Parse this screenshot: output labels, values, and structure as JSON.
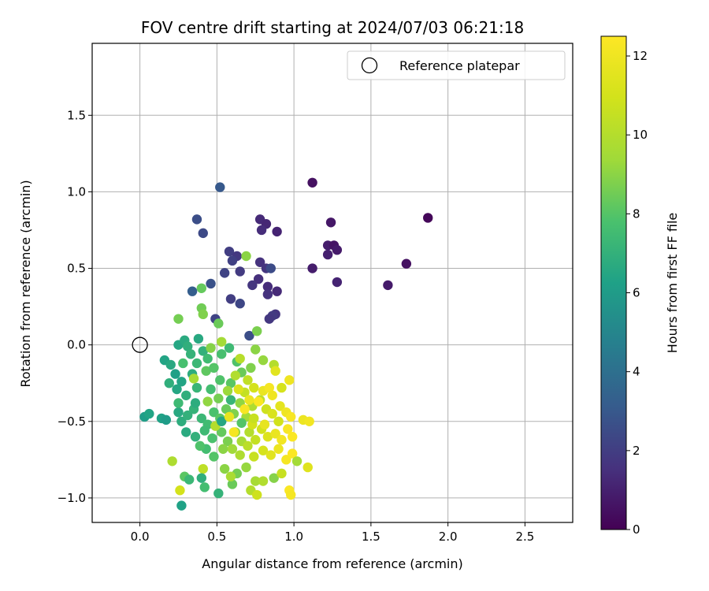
{
  "chart_data": {
    "type": "scatter",
    "title": "FOV centre drift starting at 2024/07/03 06:21:18",
    "xlabel": "Angular distance from reference (arcmin)",
    "ylabel": "Rotation from reference (arcmin)",
    "xlim": [
      -0.31,
      2.81
    ],
    "ylim": [
      -1.16,
      1.97
    ],
    "xticks": [
      "0.0",
      "0.5",
      "1.0",
      "1.5",
      "2.0",
      "2.5"
    ],
    "xtick_values": [
      0,
      0.5,
      1.0,
      1.5,
      2.0,
      2.5
    ],
    "yticks": [
      "−1.0",
      "−0.5",
      "0.0",
      "0.5",
      "1.0",
      "1.5"
    ],
    "ytick_values": [
      -1.0,
      -0.5,
      0.0,
      0.5,
      1.0,
      1.5
    ],
    "grid": true,
    "legend": {
      "position": "top-right",
      "label": "Reference platepar"
    },
    "reference_point": {
      "x": 0.0,
      "y": 0.0
    },
    "colorbar": {
      "label": "Hours from first FF file",
      "range": [
        0,
        12.5
      ],
      "ticks": [
        "0",
        "2",
        "4",
        "6",
        "8",
        "10",
        "12"
      ],
      "tick_values": [
        0,
        2,
        4,
        6,
        8,
        10,
        12
      ],
      "colormap": "viridis"
    },
    "points": [
      {
        "x": 1.87,
        "y": 0.83,
        "h": 0.2
      },
      {
        "x": 1.73,
        "y": 0.53,
        "h": 0.5
      },
      {
        "x": 1.61,
        "y": 0.39,
        "h": 0.8
      },
      {
        "x": 1.12,
        "y": 1.06,
        "h": 0.5
      },
      {
        "x": 1.24,
        "y": 0.8,
        "h": 0.7
      },
      {
        "x": 1.22,
        "y": 0.65,
        "h": 0.9
      },
      {
        "x": 1.26,
        "y": 0.65,
        "h": 0.6
      },
      {
        "x": 1.28,
        "y": 0.62,
        "h": 0.8
      },
      {
        "x": 1.22,
        "y": 0.59,
        "h": 1.0
      },
      {
        "x": 1.12,
        "y": 0.5,
        "h": 0.9
      },
      {
        "x": 1.28,
        "y": 0.41,
        "h": 1.1
      },
      {
        "x": 0.89,
        "y": 0.74,
        "h": 1.1
      },
      {
        "x": 0.78,
        "y": 0.82,
        "h": 1.3
      },
      {
        "x": 0.82,
        "y": 0.79,
        "h": 1.2
      },
      {
        "x": 0.79,
        "y": 0.75,
        "h": 1.4
      },
      {
        "x": 0.52,
        "y": 1.03,
        "h": 3.0
      },
      {
        "x": 0.37,
        "y": 0.82,
        "h": 2.6
      },
      {
        "x": 0.41,
        "y": 0.73,
        "h": 2.4
      },
      {
        "x": 0.58,
        "y": 0.61,
        "h": 2.0
      },
      {
        "x": 0.63,
        "y": 0.58,
        "h": 1.8
      },
      {
        "x": 0.6,
        "y": 0.55,
        "h": 2.1
      },
      {
        "x": 0.78,
        "y": 0.54,
        "h": 1.6
      },
      {
        "x": 0.82,
        "y": 0.5,
        "h": 1.7
      },
      {
        "x": 0.85,
        "y": 0.5,
        "h": 2.5
      },
      {
        "x": 0.55,
        "y": 0.47,
        "h": 2.2
      },
      {
        "x": 0.65,
        "y": 0.48,
        "h": 1.9
      },
      {
        "x": 0.77,
        "y": 0.43,
        "h": 1.5
      },
      {
        "x": 0.73,
        "y": 0.39,
        "h": 1.7
      },
      {
        "x": 0.83,
        "y": 0.38,
        "h": 1.4
      },
      {
        "x": 0.89,
        "y": 0.35,
        "h": 1.3
      },
      {
        "x": 0.83,
        "y": 0.33,
        "h": 1.6
      },
      {
        "x": 0.46,
        "y": 0.4,
        "h": 2.7
      },
      {
        "x": 0.34,
        "y": 0.35,
        "h": 3.2
      },
      {
        "x": 0.59,
        "y": 0.3,
        "h": 2.0
      },
      {
        "x": 0.65,
        "y": 0.27,
        "h": 2.3
      },
      {
        "x": 0.88,
        "y": 0.2,
        "h": 1.7
      },
      {
        "x": 0.86,
        "y": 0.19,
        "h": 1.9
      },
      {
        "x": 0.84,
        "y": 0.17,
        "h": 1.8
      },
      {
        "x": 0.49,
        "y": 0.17,
        "h": 2.2
      },
      {
        "x": 0.71,
        "y": 0.06,
        "h": 2.6
      },
      {
        "x": 0.69,
        "y": 0.58,
        "h": 9.0
      },
      {
        "x": 0.4,
        "y": 0.37,
        "h": 8.3
      },
      {
        "x": 0.4,
        "y": 0.24,
        "h": 8.5
      },
      {
        "x": 0.41,
        "y": 0.2,
        "h": 8.8
      },
      {
        "x": 0.25,
        "y": 0.17,
        "h": 8.6
      },
      {
        "x": 0.51,
        "y": 0.14,
        "h": 8.4
      },
      {
        "x": 0.76,
        "y": 0.09,
        "h": 8.7
      },
      {
        "x": 0.75,
        "y": -0.03,
        "h": 9.0
      },
      {
        "x": 0.16,
        "y": -0.1,
        "h": 6.4
      },
      {
        "x": 0.2,
        "y": -0.13,
        "h": 6.6
      },
      {
        "x": 0.25,
        "y": 0.0,
        "h": 6.5
      },
      {
        "x": 0.29,
        "y": 0.03,
        "h": 6.7
      },
      {
        "x": 0.31,
        "y": -0.01,
        "h": 6.9
      },
      {
        "x": 0.38,
        "y": 0.04,
        "h": 6.6
      },
      {
        "x": 0.41,
        "y": -0.04,
        "h": 7.0
      },
      {
        "x": 0.23,
        "y": -0.19,
        "h": 6.2
      },
      {
        "x": 0.27,
        "y": -0.24,
        "h": 6.4
      },
      {
        "x": 0.34,
        "y": -0.19,
        "h": 6.8
      },
      {
        "x": 0.37,
        "y": -0.12,
        "h": 7.3
      },
      {
        "x": 0.44,
        "y": -0.09,
        "h": 7.5
      },
      {
        "x": 0.53,
        "y": -0.06,
        "h": 7.7
      },
      {
        "x": 0.58,
        "y": -0.02,
        "h": 7.4
      },
      {
        "x": 0.63,
        "y": -0.11,
        "h": 7.9
      },
      {
        "x": 0.24,
        "y": -0.29,
        "h": 6.5
      },
      {
        "x": 0.3,
        "y": -0.33,
        "h": 6.9
      },
      {
        "x": 0.37,
        "y": -0.28,
        "h": 7.2
      },
      {
        "x": 0.46,
        "y": -0.29,
        "h": 7.6
      },
      {
        "x": 0.52,
        "y": -0.23,
        "h": 7.9
      },
      {
        "x": 0.59,
        "y": -0.25,
        "h": 8.1
      },
      {
        "x": 0.66,
        "y": -0.18,
        "h": 8.4
      },
      {
        "x": 0.72,
        "y": -0.15,
        "h": 8.8
      },
      {
        "x": 0.8,
        "y": -0.1,
        "h": 9.2
      },
      {
        "x": 0.87,
        "y": -0.13,
        "h": 10.0
      },
      {
        "x": 0.88,
        "y": -0.17,
        "h": 11.5
      },
      {
        "x": 0.97,
        "y": -0.23,
        "h": 12.0
      },
      {
        "x": 0.03,
        "y": -0.47,
        "h": 6.1
      },
      {
        "x": 0.06,
        "y": -0.45,
        "h": 6.4
      },
      {
        "x": 0.14,
        "y": -0.48,
        "h": 6.3
      },
      {
        "x": 0.17,
        "y": -0.49,
        "h": 6.0
      },
      {
        "x": 0.25,
        "y": -0.44,
        "h": 6.6
      },
      {
        "x": 0.27,
        "y": -0.5,
        "h": 6.8
      },
      {
        "x": 0.31,
        "y": -0.46,
        "h": 7.0
      },
      {
        "x": 0.35,
        "y": -0.42,
        "h": 7.1
      },
      {
        "x": 0.4,
        "y": -0.48,
        "h": 7.3
      },
      {
        "x": 0.44,
        "y": -0.52,
        "h": 7.5
      },
      {
        "x": 0.48,
        "y": -0.44,
        "h": 7.8
      },
      {
        "x": 0.52,
        "y": -0.48,
        "h": 8.1
      },
      {
        "x": 0.56,
        "y": -0.42,
        "h": 8.4
      },
      {
        "x": 0.61,
        "y": -0.45,
        "h": 8.8
      },
      {
        "x": 0.65,
        "y": -0.38,
        "h": 9.1
      },
      {
        "x": 0.69,
        "y": -0.47,
        "h": 9.5
      },
      {
        "x": 0.73,
        "y": -0.4,
        "h": 9.8
      },
      {
        "x": 0.78,
        "y": -0.36,
        "h": 10.3
      },
      {
        "x": 0.82,
        "y": -0.42,
        "h": 10.8
      },
      {
        "x": 0.86,
        "y": -0.45,
        "h": 11.2
      },
      {
        "x": 0.91,
        "y": -0.4,
        "h": 11.6
      },
      {
        "x": 0.95,
        "y": -0.44,
        "h": 12.0
      },
      {
        "x": 0.98,
        "y": -0.47,
        "h": 12.3
      },
      {
        "x": 1.06,
        "y": -0.49,
        "h": 11.9
      },
      {
        "x": 1.1,
        "y": -0.5,
        "h": 12.1
      },
      {
        "x": 0.8,
        "y": -0.3,
        "h": 11.8
      },
      {
        "x": 0.84,
        "y": -0.28,
        "h": 12.2
      },
      {
        "x": 0.86,
        "y": -0.33,
        "h": 12.0
      },
      {
        "x": 0.74,
        "y": -0.28,
        "h": 11.0
      },
      {
        "x": 0.68,
        "y": -0.31,
        "h": 10.5
      },
      {
        "x": 0.3,
        "y": -0.57,
        "h": 6.7
      },
      {
        "x": 0.36,
        "y": -0.6,
        "h": 7.0
      },
      {
        "x": 0.42,
        "y": -0.56,
        "h": 7.4
      },
      {
        "x": 0.47,
        "y": -0.61,
        "h": 7.8
      },
      {
        "x": 0.53,
        "y": -0.57,
        "h": 8.3
      },
      {
        "x": 0.57,
        "y": -0.63,
        "h": 8.7
      },
      {
        "x": 0.62,
        "y": -0.57,
        "h": 9.2
      },
      {
        "x": 0.66,
        "y": -0.63,
        "h": 9.6
      },
      {
        "x": 0.71,
        "y": -0.57,
        "h": 10.0
      },
      {
        "x": 0.75,
        "y": -0.62,
        "h": 10.5
      },
      {
        "x": 0.79,
        "y": -0.55,
        "h": 10.9
      },
      {
        "x": 0.83,
        "y": -0.6,
        "h": 11.3
      },
      {
        "x": 0.88,
        "y": -0.58,
        "h": 11.8
      },
      {
        "x": 0.92,
        "y": -0.62,
        "h": 12.1
      },
      {
        "x": 0.96,
        "y": -0.55,
        "h": 12.3
      },
      {
        "x": 0.99,
        "y": -0.6,
        "h": 12.4
      },
      {
        "x": 0.61,
        "y": -0.57,
        "h": 12.2
      },
      {
        "x": 0.49,
        "y": -0.53,
        "h": 10.0
      },
      {
        "x": 0.54,
        "y": -0.68,
        "h": 9.0
      },
      {
        "x": 0.6,
        "y": -0.68,
        "h": 9.4
      },
      {
        "x": 0.65,
        "y": -0.72,
        "h": 9.8
      },
      {
        "x": 0.7,
        "y": -0.66,
        "h": 10.2
      },
      {
        "x": 0.74,
        "y": -0.73,
        "h": 10.6
      },
      {
        "x": 0.8,
        "y": -0.69,
        "h": 11.1
      },
      {
        "x": 0.85,
        "y": -0.72,
        "h": 11.5
      },
      {
        "x": 0.9,
        "y": -0.68,
        "h": 11.9
      },
      {
        "x": 0.95,
        "y": -0.75,
        "h": 12.2
      },
      {
        "x": 0.99,
        "y": -0.71,
        "h": 12.4
      },
      {
        "x": 0.48,
        "y": -0.73,
        "h": 8.0
      },
      {
        "x": 0.43,
        "y": -0.68,
        "h": 7.6
      },
      {
        "x": 0.21,
        "y": -0.76,
        "h": 9.8
      },
      {
        "x": 0.41,
        "y": -0.81,
        "h": 10.3
      },
      {
        "x": 0.55,
        "y": -0.81,
        "h": 9.0
      },
      {
        "x": 0.63,
        "y": -0.84,
        "h": 8.6
      },
      {
        "x": 0.69,
        "y": -0.8,
        "h": 9.2
      },
      {
        "x": 0.75,
        "y": -0.89,
        "h": 9.6
      },
      {
        "x": 0.8,
        "y": -0.89,
        "h": 9.9
      },
      {
        "x": 0.87,
        "y": -0.87,
        "h": 8.9
      },
      {
        "x": 0.92,
        "y": -0.84,
        "h": 10.6
      },
      {
        "x": 1.02,
        "y": -0.76,
        "h": 9.5
      },
      {
        "x": 1.09,
        "y": -0.8,
        "h": 11.4
      },
      {
        "x": 0.29,
        "y": -0.86,
        "h": 8.1
      },
      {
        "x": 0.32,
        "y": -0.88,
        "h": 7.3
      },
      {
        "x": 0.4,
        "y": -0.87,
        "h": 6.9
      },
      {
        "x": 0.42,
        "y": -0.93,
        "h": 7.6
      },
      {
        "x": 0.51,
        "y": -0.97,
        "h": 7.1
      },
      {
        "x": 0.6,
        "y": -0.91,
        "h": 8.4
      },
      {
        "x": 0.59,
        "y": -0.86,
        "h": 9.7
      },
      {
        "x": 0.72,
        "y": -0.95,
        "h": 10.0
      },
      {
        "x": 0.76,
        "y": -0.98,
        "h": 10.8
      },
      {
        "x": 0.97,
        "y": -0.95,
        "h": 12.4
      },
      {
        "x": 0.98,
        "y": -0.98,
        "h": 12.2
      },
      {
        "x": 0.26,
        "y": -0.95,
        "h": 11.0
      },
      {
        "x": 0.27,
        "y": -1.05,
        "h": 6.3
      },
      {
        "x": 0.25,
        "y": -0.38,
        "h": 7.4
      },
      {
        "x": 0.19,
        "y": -0.25,
        "h": 6.9
      },
      {
        "x": 0.28,
        "y": -0.12,
        "h": 7.7
      },
      {
        "x": 0.33,
        "y": -0.06,
        "h": 7.1
      },
      {
        "x": 0.43,
        "y": -0.17,
        "h": 8.2
      },
      {
        "x": 0.46,
        "y": -0.02,
        "h": 8.9
      },
      {
        "x": 0.51,
        "y": -0.35,
        "h": 8.6
      },
      {
        "x": 0.57,
        "y": -0.3,
        "h": 9.3
      },
      {
        "x": 0.62,
        "y": -0.2,
        "h": 9.9
      },
      {
        "x": 0.7,
        "y": -0.23,
        "h": 10.4
      },
      {
        "x": 0.73,
        "y": -0.52,
        "h": 11.0
      },
      {
        "x": 0.81,
        "y": -0.52,
        "h": 11.7
      },
      {
        "x": 0.9,
        "y": -0.5,
        "h": 10.9
      },
      {
        "x": 0.65,
        "y": -0.09,
        "h": 10.1
      },
      {
        "x": 0.53,
        "y": 0.02,
        "h": 9.5
      },
      {
        "x": 0.59,
        "y": -0.36,
        "h": 7.2
      },
      {
        "x": 0.36,
        "y": -0.38,
        "h": 6.8
      },
      {
        "x": 0.39,
        "y": -0.66,
        "h": 7.9
      },
      {
        "x": 0.53,
        "y": -0.5,
        "h": 6.5
      },
      {
        "x": 0.66,
        "y": -0.51,
        "h": 8.0
      },
      {
        "x": 0.74,
        "y": -0.48,
        "h": 10.6
      },
      {
        "x": 0.64,
        "y": -0.29,
        "h": 11.3
      },
      {
        "x": 0.77,
        "y": -0.37,
        "h": 12.4
      },
      {
        "x": 0.92,
        "y": -0.28,
        "h": 11.1
      },
      {
        "x": 0.44,
        "y": -0.37,
        "h": 9.1
      },
      {
        "x": 0.48,
        "y": -0.15,
        "h": 8.0
      },
      {
        "x": 0.35,
        "y": -0.22,
        "h": 9.6
      },
      {
        "x": 0.58,
        "y": -0.47,
        "h": 11.7
      },
      {
        "x": 0.68,
        "y": -0.42,
        "h": 12.3
      },
      {
        "x": 0.71,
        "y": -0.36,
        "h": 11.9
      }
    ]
  }
}
